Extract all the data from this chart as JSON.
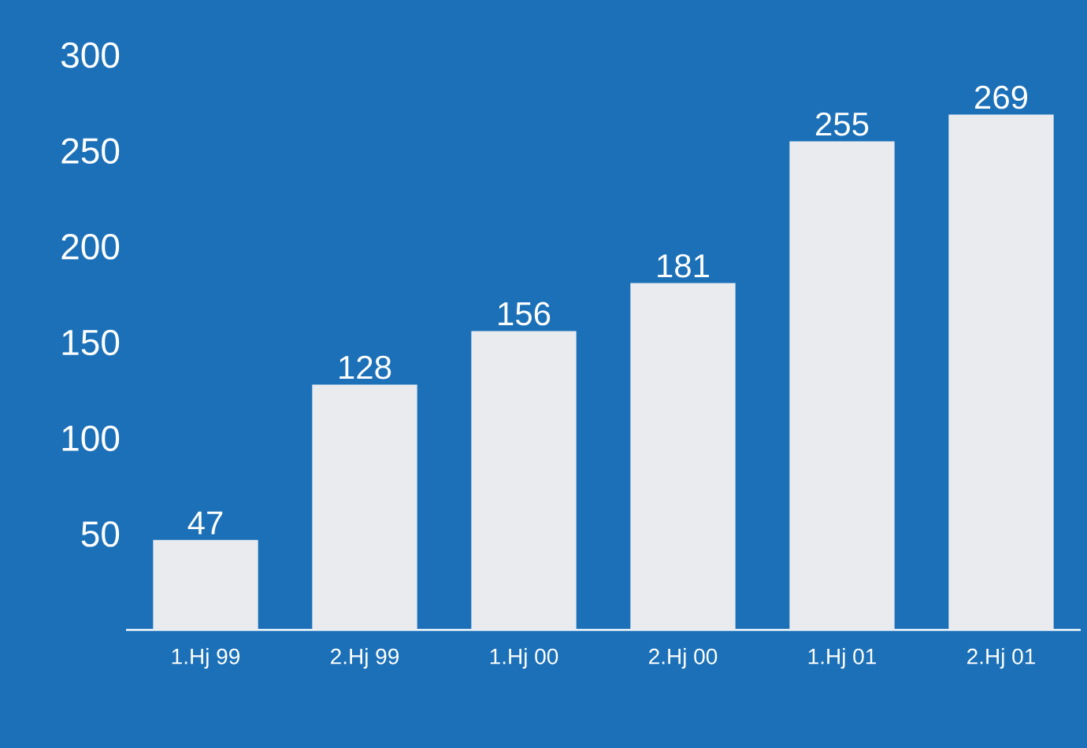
{
  "chart_data": {
    "type": "bar",
    "categories": [
      "1.Hj 99",
      "2.Hj 99",
      "1.Hj 00",
      "2.Hj 00",
      "1.Hj 01",
      "2.Hj 01"
    ],
    "values": [
      47,
      128,
      156,
      181,
      255,
      269
    ],
    "color": "#e9ebef",
    "ylim": [
      0,
      300
    ],
    "yticks": [
      50,
      100,
      150,
      200,
      250,
      300
    ],
    "data_labels": true
  }
}
